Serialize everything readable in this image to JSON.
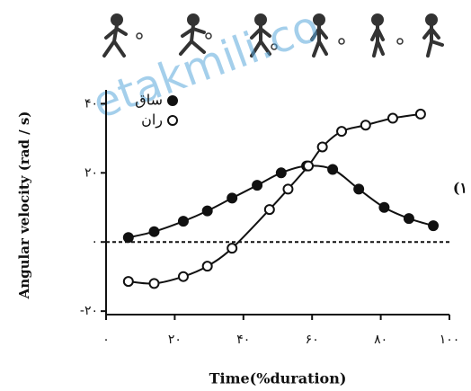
{
  "chart_data": {
    "type": "line",
    "watermark": "etakmili.co",
    "annotation": "(۱",
    "x_label": "Time(%duration)",
    "y_label": "Angular velocity (rad / s)",
    "xlim": [
      0,
      100
    ],
    "ylim": [
      -21,
      44
    ],
    "xticks": [
      {
        "value": 0,
        "label": "۰"
      },
      {
        "value": 20,
        "label": "۲۰"
      },
      {
        "value": 40,
        "label": "۴۰"
      },
      {
        "value": 60,
        "label": "۶۰"
      },
      {
        "value": 80,
        "label": "۸۰"
      },
      {
        "value": 100,
        "label": "۱۰۰"
      }
    ],
    "yticks": [
      {
        "value": -20,
        "label": "-۲۰"
      },
      {
        "value": 0,
        "label": "۰"
      },
      {
        "value": 20,
        "label": "۲۰"
      },
      {
        "value": 40,
        "label": "۴۰"
      }
    ],
    "zero_line": true,
    "series": [
      {
        "name": "ساق",
        "color": "#111111",
        "marker": "filled",
        "x": [
          6.5,
          14,
          22.5,
          29.5,
          36.7,
          44,
          51,
          58.4,
          66,
          73.6,
          81,
          88.2,
          95.3
        ],
        "values": [
          1.3,
          3,
          6,
          9,
          12.7,
          16.4,
          20,
          22,
          21,
          15.3,
          10,
          6.8,
          4.7
        ]
      },
      {
        "name": "ران",
        "color": "#111111",
        "marker": "open",
        "x": [
          6.5,
          14,
          22.5,
          29.5,
          36.7,
          47.6,
          53,
          58.9,
          63,
          68.6,
          75.6,
          83.5,
          91.6
        ],
        "values": [
          -11.4,
          -12,
          -10,
          -7,
          -1.8,
          9.4,
          15.3,
          22,
          27.5,
          32,
          33.8,
          35.8,
          37
        ]
      }
    ]
  }
}
